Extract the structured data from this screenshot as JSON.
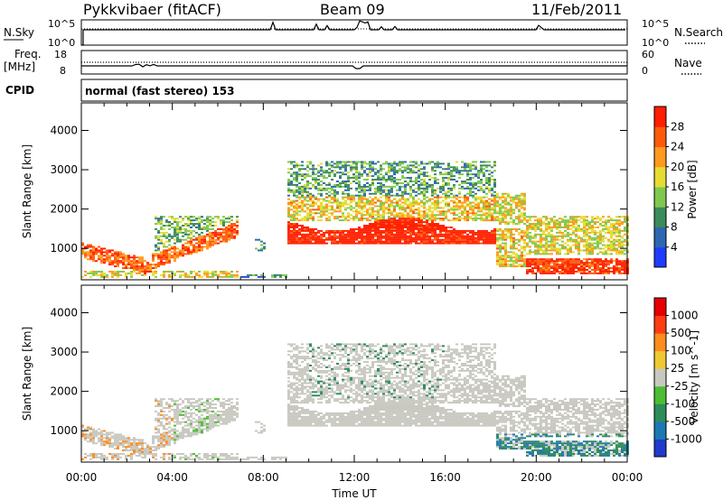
{
  "header": {
    "title": "Pykkvibaer (fitACF)",
    "beam": "Beam 09",
    "date": "11/Feb/2011"
  },
  "nsky_panel": {
    "left_label": "N.Sky",
    "right_label": "N.Search",
    "left_ticks": [
      "10^5",
      "10^0"
    ],
    "right_ticks": [
      "10^5",
      "10^0"
    ],
    "right_line_style": "dotted"
  },
  "freq_panel": {
    "left_label_1": "Freq.",
    "left_label_2": "[MHz]",
    "right_label": "Nave",
    "left_ticks": [
      "18",
      "8"
    ],
    "right_ticks": [
      "60",
      "0"
    ],
    "right_line_style": "dotted"
  },
  "cpid_panel": {
    "label": "CPID",
    "text": "normal (fast stereo) 153"
  },
  "chart_data": [
    {
      "type": "heatmap",
      "name": "power",
      "ylabel": "Slant Range [km]",
      "yticks": [
        "1000",
        "2000",
        "3000",
        "4000"
      ],
      "ylim": [
        200,
        4700
      ],
      "colorbar_label": "Power [dB]",
      "colorbar_ticks": [
        "4",
        "8",
        "12",
        "16",
        "20",
        "24",
        "28"
      ],
      "colorbar_colors": [
        "#1e3cff",
        "#2e66b4",
        "#3c8c5a",
        "#80c850",
        "#e6dc32",
        "#ff9a1e",
        "#ff5a0a",
        "#ff1e00"
      ]
    },
    {
      "type": "heatmap",
      "name": "velocity",
      "ylabel": "Slant Range [km]",
      "yticks": [
        "1000",
        "2000",
        "3000",
        "4000"
      ],
      "ylim": [
        200,
        4700
      ],
      "colorbar_label": "Velocity [m s^-1]",
      "colorbar_ticks": [
        "1000",
        "500",
        "100",
        "25",
        "-25",
        "-100",
        "-500",
        "-1000"
      ],
      "colorbar_colors": [
        "#1e3ccc",
        "#1e78b4",
        "#2e8c5a",
        "#4cbe32",
        "#c8c8c0",
        "#f0c832",
        "#ff8c1e",
        "#ff3c14",
        "#e60000"
      ]
    }
  ],
  "time_axis": {
    "label": "Time UT",
    "ticks": [
      "00:00",
      "04:00",
      "08:00",
      "12:00",
      "16:00",
      "20:00",
      "00:00"
    ]
  }
}
